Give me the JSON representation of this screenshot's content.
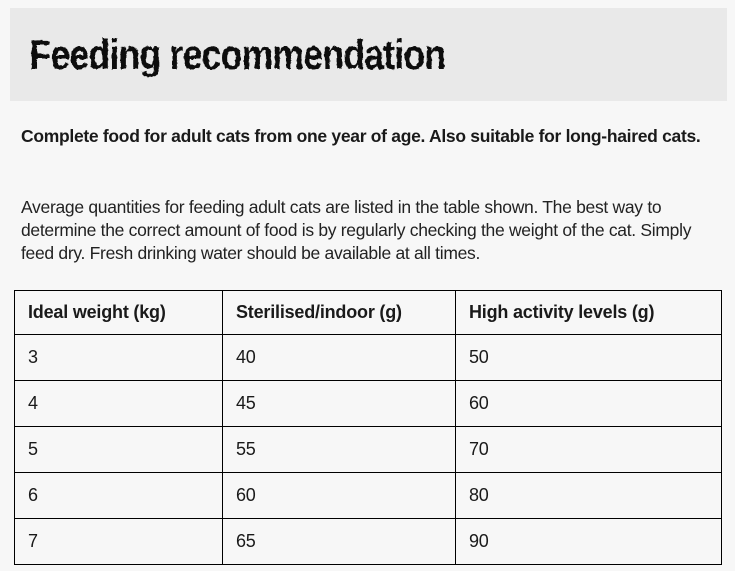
{
  "page": {
    "title": "Feeding recommendation"
  },
  "intro": {
    "bold_text": "Complete food for adult cats from one year of age. Also suitable for long-haired cats.",
    "body_text": "Average quantities for feeding adult cats are listed in the table shown. The best way to determine the correct amount of food is by regularly checking the weight of the cat. Simply feed dry. Fresh drinking water should be available at all times."
  },
  "table": {
    "columns": [
      "Ideal weight (kg)",
      "Sterilised/indoor (g)",
      "High activity levels (g)"
    ],
    "rows": [
      [
        "3",
        "40",
        "50"
      ],
      [
        "4",
        "45",
        "60"
      ],
      [
        "5",
        "55",
        "70"
      ],
      [
        "6",
        "60",
        "80"
      ],
      [
        "7",
        "65",
        "90"
      ]
    ]
  },
  "chart_data": {
    "type": "table",
    "title": "Feeding recommendation",
    "columns": [
      "Ideal weight (kg)",
      "Sterilised/indoor (g)",
      "High activity levels (g)"
    ],
    "rows": [
      [
        3,
        40,
        50
      ],
      [
        4,
        45,
        60
      ],
      [
        5,
        55,
        70
      ],
      [
        6,
        60,
        80
      ],
      [
        7,
        65,
        90
      ]
    ]
  },
  "colors": {
    "page_background": "#f7f7f7",
    "header_band": "#e9e9e9",
    "text": "#1d1d1d",
    "table_border": "#000000"
  }
}
